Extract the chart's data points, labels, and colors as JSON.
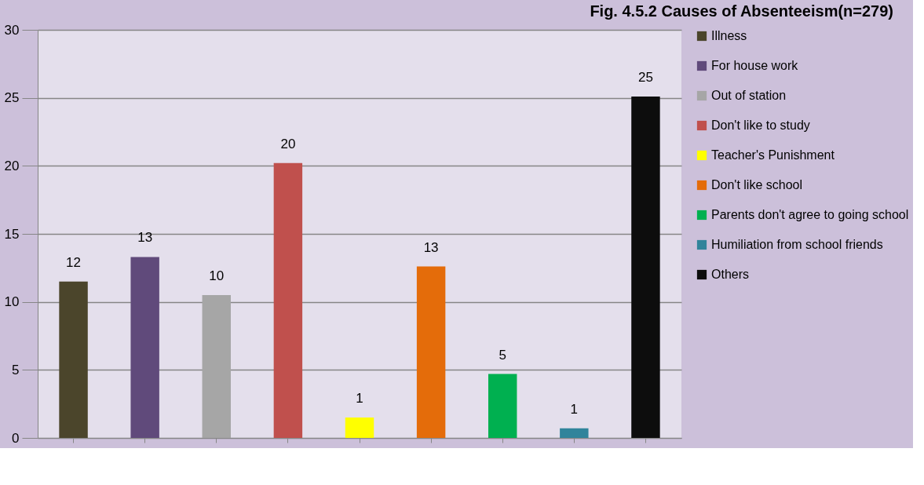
{
  "chart_data": {
    "type": "bar",
    "title": "Fig. 4.5.2 Causes of Absenteeism(n=279)",
    "categories": [
      null,
      null,
      null,
      null,
      null,
      null,
      null,
      null,
      null
    ],
    "series": [
      {
        "name": "Illness",
        "color": "#4b452b",
        "values": [
          11.5,
          null,
          null,
          null,
          null,
          null,
          null,
          null,
          null
        ],
        "value_labels": [
          "12",
          null,
          null,
          null,
          null,
          null,
          null,
          null,
          null
        ]
      },
      {
        "name": "For house work",
        "color": "#604a7b",
        "values": [
          null,
          13.3,
          null,
          null,
          null,
          null,
          null,
          null,
          null
        ],
        "value_labels": [
          null,
          "13",
          null,
          null,
          null,
          null,
          null,
          null,
          null
        ]
      },
      {
        "name": "Out of station",
        "color": "#a6a6a6",
        "values": [
          null,
          null,
          10.5,
          null,
          null,
          null,
          null,
          null,
          null
        ],
        "value_labels": [
          null,
          null,
          "10",
          null,
          null,
          null,
          null,
          null,
          null
        ]
      },
      {
        "name": "Don't like to study",
        "color": "#c0504d",
        "values": [
          null,
          null,
          null,
          20.2,
          null,
          null,
          null,
          null,
          null
        ],
        "value_labels": [
          null,
          null,
          null,
          "20",
          null,
          null,
          null,
          null,
          null
        ]
      },
      {
        "name": "Teacher's Punishment",
        "color": "#ffff00",
        "values": [
          null,
          null,
          null,
          null,
          1.5,
          null,
          null,
          null,
          null
        ],
        "value_labels": [
          null,
          null,
          null,
          null,
          "1",
          null,
          null,
          null,
          null
        ]
      },
      {
        "name": "Don't like school",
        "color": "#e46c0a",
        "values": [
          null,
          null,
          null,
          null,
          null,
          12.6,
          null,
          null,
          null
        ],
        "value_labels": [
          null,
          null,
          null,
          null,
          null,
          "13",
          null,
          null,
          null
        ]
      },
      {
        "name": "Parents don't agree to going school",
        "color": "#00b050",
        "values": [
          null,
          null,
          null,
          null,
          null,
          null,
          4.7,
          null,
          null
        ],
        "value_labels": [
          null,
          null,
          null,
          null,
          null,
          null,
          "5",
          null,
          null
        ]
      },
      {
        "name": "Humiliation from school friends",
        "color": "#31849b",
        "values": [
          null,
          null,
          null,
          null,
          null,
          null,
          null,
          0.7,
          null
        ],
        "value_labels": [
          null,
          null,
          null,
          null,
          null,
          null,
          null,
          "1",
          null
        ]
      },
      {
        "name": "Others",
        "color": "#0d0d0d",
        "values": [
          null,
          null,
          null,
          null,
          null,
          null,
          null,
          null,
          25.1
        ],
        "value_labels": [
          null,
          null,
          null,
          null,
          null,
          null,
          null,
          null,
          "25"
        ]
      }
    ],
    "ylim": [
      0,
      30
    ],
    "yticks": [
      0,
      5,
      10,
      15,
      20,
      25,
      30
    ],
    "grid": "y",
    "legend": "right",
    "tick_labels": "y"
  }
}
